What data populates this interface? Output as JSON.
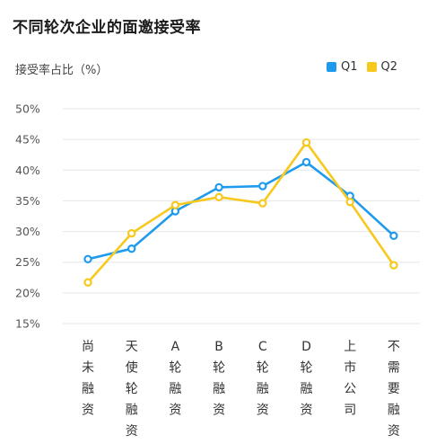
{
  "chart_data": {
    "type": "line",
    "title": "不同轮次企业的面邀接受率",
    "ylabel": "接受率占比（%）",
    "ylim": [
      15,
      50
    ],
    "yticks": [
      "50%",
      "45%",
      "40%",
      "35%",
      "30%",
      "25%",
      "20%",
      "15%"
    ],
    "categories": [
      "尚未融资",
      "天使轮融资",
      "A轮融资",
      "B轮融资",
      "C轮融资",
      "D轮融资",
      "上市公司",
      "不需要融资"
    ],
    "series": [
      {
        "name": "Q1",
        "color": "#1f9bee",
        "values": [
          25.5,
          27.2,
          33.3,
          37.2,
          37.4,
          41.3,
          35.8,
          29.3
        ]
      },
      {
        "name": "Q2",
        "color": "#f7c81e",
        "values": [
          21.7,
          29.7,
          34.3,
          35.6,
          34.6,
          44.5,
          34.8,
          24.5
        ]
      }
    ],
    "legend_position": "top-right",
    "grid": true
  }
}
